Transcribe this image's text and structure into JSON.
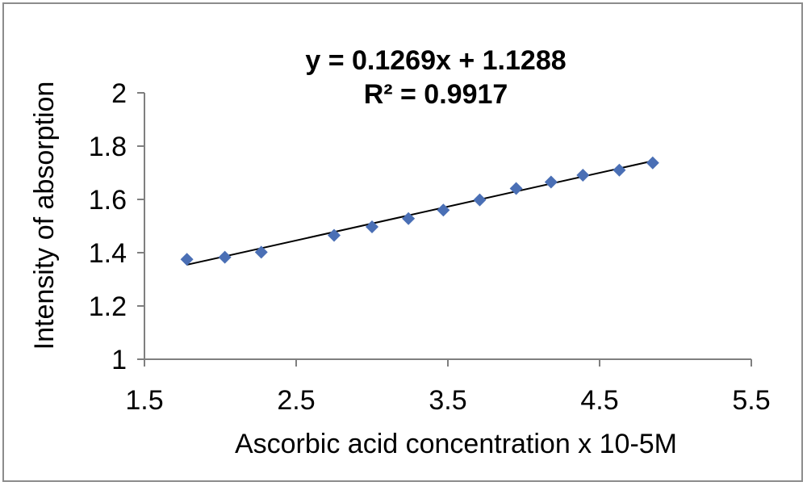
{
  "chart_data": {
    "type": "scatter",
    "xlabel": "Ascorbic acid concentration x 10-5M",
    "ylabel": "Intensity of absorption",
    "xlim": [
      1.5,
      5.5
    ],
    "ylim": [
      1,
      2
    ],
    "x_ticks": [
      "1.5",
      "2.5",
      "3.5",
      "4.5",
      "5.5"
    ],
    "y_ticks": [
      "1",
      "1.2",
      "1.4",
      "1.6",
      "1.8",
      "2"
    ],
    "grid": false,
    "legend": "none",
    "marker_color": "#4a6fb5",
    "trendline": {
      "equation": "y = 0.1269x + 1.1288",
      "r_squared": "R² = 0.9917",
      "slope": 0.1269,
      "intercept": 1.1288,
      "x_range": [
        1.78,
        4.85
      ]
    },
    "points": [
      {
        "x": 1.78,
        "y": 1.375
      },
      {
        "x": 2.03,
        "y": 1.383
      },
      {
        "x": 2.27,
        "y": 1.402
      },
      {
        "x": 2.75,
        "y": 1.465
      },
      {
        "x": 3.0,
        "y": 1.497
      },
      {
        "x": 3.24,
        "y": 1.528
      },
      {
        "x": 3.47,
        "y": 1.56
      },
      {
        "x": 3.71,
        "y": 1.598
      },
      {
        "x": 3.95,
        "y": 1.641
      },
      {
        "x": 4.18,
        "y": 1.665
      },
      {
        "x": 4.39,
        "y": 1.691
      },
      {
        "x": 4.63,
        "y": 1.71
      },
      {
        "x": 4.85,
        "y": 1.737
      }
    ]
  }
}
